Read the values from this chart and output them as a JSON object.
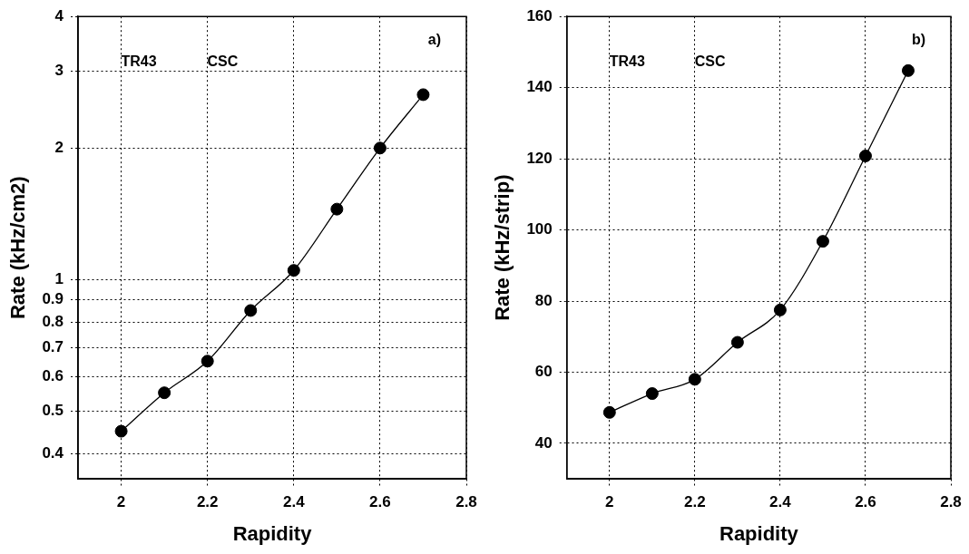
{
  "chart_data": [
    {
      "type": "scatter",
      "xlabel": "Rapidity",
      "ylabel": "Rate (kHz/cm2)",
      "log": "y",
      "xlim": [
        1.9,
        2.8
      ],
      "xticks": [
        2,
        2.2,
        2.4,
        2.6,
        2.8
      ],
      "ylim": [
        0.35,
        4
      ],
      "yticks": [
        0.4,
        0.5,
        0.6,
        0.7,
        0.8,
        0.9,
        1,
        2,
        3,
        4
      ],
      "grid": true,
      "legend": false,
      "marker": "circle",
      "x": [
        2.0,
        2.1,
        2.2,
        2.3,
        2.4,
        2.5,
        2.6,
        2.7
      ],
      "series": [
        {
          "color": "#000000",
          "values": [
            0.45,
            0.551,
            0.651,
            0.85,
            1.05,
            1.45,
            2.0,
            2.65
          ]
        },
        {
          "type": "line",
          "color": "#000000",
          "marker": "none",
          "line_style": "solid",
          "values": [
            0.45,
            0.551,
            0.651,
            0.85,
            1.05,
            1.45,
            2.0,
            2.65
          ]
        }
      ],
      "annotations": [
        "TR43",
        "CSC",
        "a)"
      ]
    },
    {
      "type": "scatter",
      "xlabel": "Rapidity",
      "ylabel": "Rate (kHz/strip)",
      "xlim": [
        1.9,
        2.8
      ],
      "xticks": [
        2,
        2.2,
        2.4,
        2.6,
        2.8
      ],
      "ylim": [
        30,
        160
      ],
      "yticks": [
        40,
        60,
        80,
        100,
        120,
        140,
        160
      ],
      "grid": true,
      "legend": false,
      "marker": "circle",
      "x": [
        2.0,
        2.1,
        2.2,
        2.3,
        2.4,
        2.5,
        2.6,
        2.7
      ],
      "series": [
        {
          "color": "#000000",
          "values": [
            48.7,
            54.0,
            58.0,
            68.4,
            77.5,
            96.8,
            120.8,
            144.8
          ]
        },
        {
          "type": "line",
          "color": "#000000",
          "marker": "none",
          "line_style": "solid",
          "values": [
            48.7,
            54.0,
            58.0,
            68.4,
            77.5,
            96.8,
            120.8,
            144.8
          ]
        }
      ],
      "annotations": [
        "TR43",
        "CSC",
        "b)"
      ]
    }
  ]
}
